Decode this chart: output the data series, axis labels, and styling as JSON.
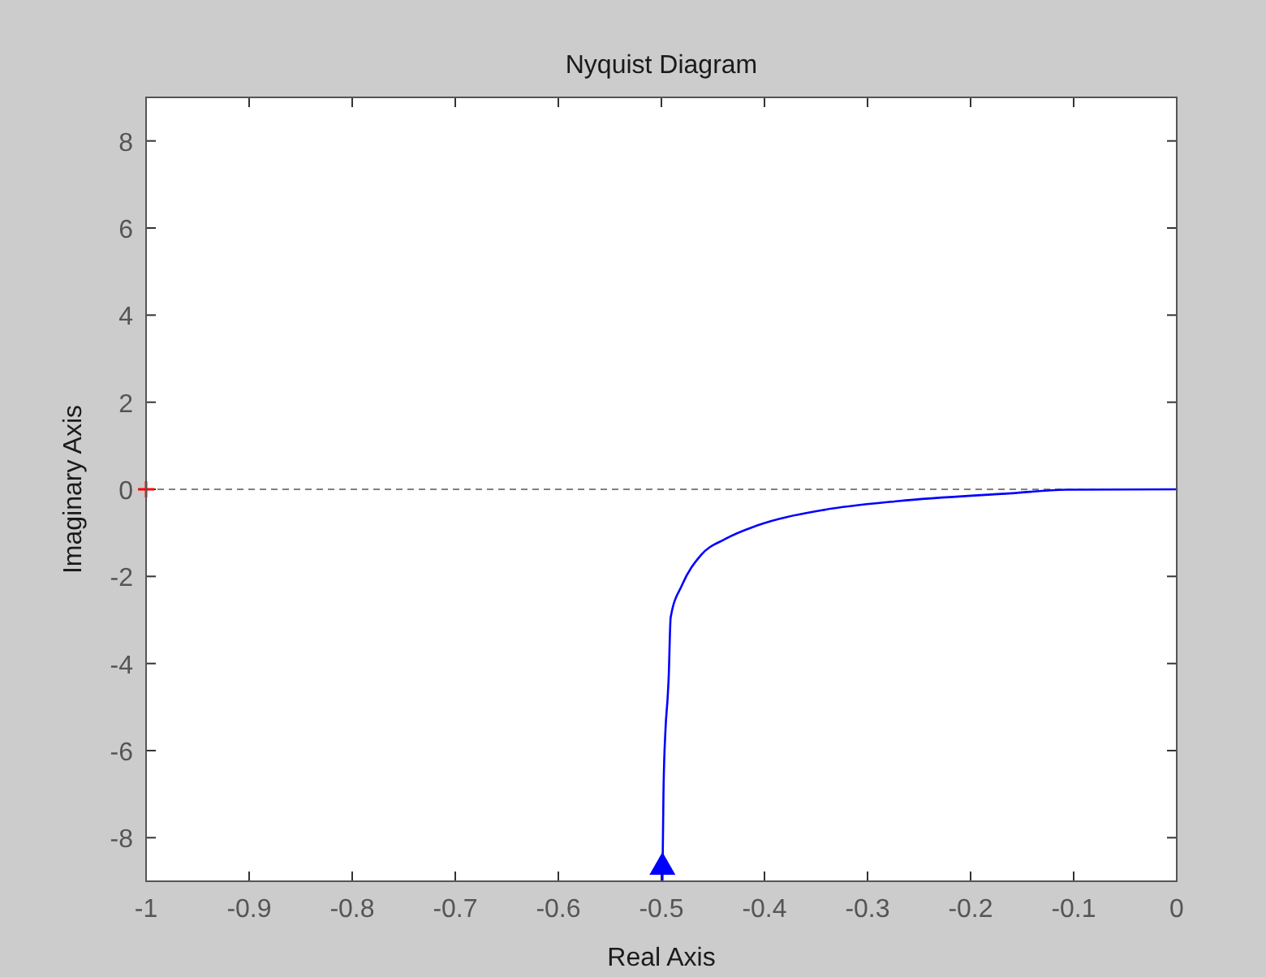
{
  "chart_data": {
    "type": "line",
    "title": "Nyquist Diagram",
    "xlabel": "Real Axis",
    "ylabel": "Imaginary Axis",
    "xlim": [
      -1,
      0
    ],
    "ylim": [
      -9,
      9
    ],
    "xticks": [
      -1,
      -0.9,
      -0.8,
      -0.7,
      -0.6,
      -0.5,
      -0.4,
      -0.3,
      -0.2,
      -0.1,
      0
    ],
    "yticks": [
      -8,
      -6,
      -4,
      -2,
      0,
      2,
      4,
      6,
      8
    ],
    "grid": false,
    "ref_lines": [
      {
        "axis": "y",
        "value": 0,
        "color": "#808080",
        "line_style": "dashed"
      }
    ],
    "series": [
      {
        "color": "#0000ff",
        "marker": "none",
        "line_style": "solid",
        "x": [
          -0.499,
          -0.498,
          -0.496,
          -0.494,
          -0.493,
          -0.491,
          -0.48,
          -0.462,
          -0.438,
          -0.407,
          -0.344,
          -0.27,
          -0.16,
          -0.108,
          0
        ],
        "values": [
          -9,
          -7,
          -5.5,
          -4.8,
          -4.36,
          -2.94,
          -2.2,
          -1.52,
          -1.14,
          -0.83,
          -0.48,
          -0.27,
          -0.09,
          -0.01,
          0
        ]
      },
      {
        "type": "scatter",
        "color": "#ff0000",
        "marker": "cross",
        "x": [
          -1
        ],
        "values": [
          0
        ]
      }
    ]
  }
}
